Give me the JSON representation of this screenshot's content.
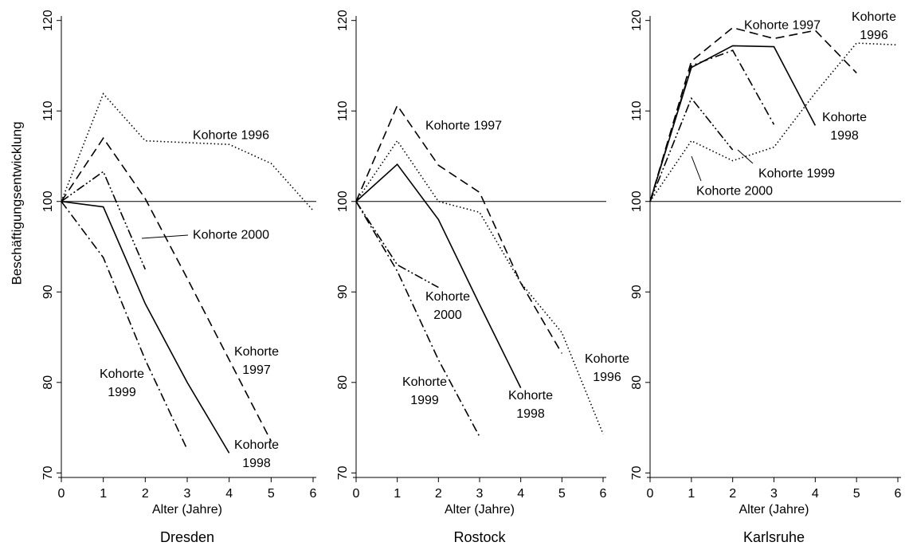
{
  "chart_data": [
    {
      "type": "line",
      "title": "Dresden",
      "xlabel": "Alter (Jahre)",
      "ylabel": "Beschäftigungsentwicklung",
      "x": [
        0,
        1,
        2,
        3,
        4,
        5,
        6
      ],
      "xlim": [
        0,
        6
      ],
      "xticks": [
        0,
        1,
        2,
        3,
        4,
        5,
        6
      ],
      "ylim": [
        69.5,
        120.5
      ],
      "yticks": [
        70,
        80,
        90,
        100,
        110,
        120
      ],
      "reference_line": 100,
      "series": [
        {
          "name": "Kohorte 1996",
          "color": "#000000",
          "line_style": "dotted",
          "values": [
            100,
            111.9,
            106.7,
            106.5,
            106.3,
            104.2,
            99
          ]
        },
        {
          "name": "Kohorte 1997",
          "color": "#000000",
          "line_style": "dashed",
          "values": [
            100,
            107,
            100.3,
            91.5,
            82.5,
            73.5,
            null
          ]
        },
        {
          "name": "Kohorte 1998",
          "color": "#000000",
          "line_style": "solid",
          "values": [
            100,
            99.4,
            88.7,
            80,
            72.2,
            null,
            null
          ]
        },
        {
          "name": "Kohorte 1999",
          "color": "#000000",
          "line_style": "dash-dot",
          "values": [
            100,
            93.8,
            82.5,
            72.6,
            null,
            null,
            null
          ]
        },
        {
          "name": "Kohorte 2000",
          "color": "#000000",
          "line_style": "dash-dot-dot",
          "values": [
            100,
            103.3,
            92.5,
            null,
            null,
            null,
            null
          ]
        }
      ]
    },
    {
      "type": "line",
      "title": "Rostock",
      "xlabel": "Alter (Jahre)",
      "x": [
        0,
        1,
        2,
        3,
        4,
        5,
        6
      ],
      "xlim": [
        0,
        6
      ],
      "xticks": [
        0,
        1,
        2,
        3,
        4,
        5,
        6
      ],
      "ylim": [
        69.5,
        120.5
      ],
      "yticks": [
        70,
        80,
        90,
        100,
        110,
        120
      ],
      "reference_line": 100,
      "series": [
        {
          "name": "Kohorte 1996",
          "color": "#000000",
          "line_style": "dotted",
          "values": [
            100,
            106.7,
            100,
            98.8,
            91,
            85.5,
            74.3
          ]
        },
        {
          "name": "Kohorte 1997",
          "color": "#000000",
          "line_style": "dashed",
          "values": [
            100,
            110.6,
            104,
            101,
            91,
            83.2,
            null
          ]
        },
        {
          "name": "Kohorte 1998",
          "color": "#000000",
          "line_style": "solid",
          "values": [
            100,
            104.1,
            98,
            88.6,
            79.4,
            null,
            null
          ]
        },
        {
          "name": "Kohorte 1999",
          "color": "#000000",
          "line_style": "dash-dot",
          "values": [
            100,
            92.3,
            82.5,
            74,
            null,
            null,
            null
          ]
        },
        {
          "name": "Kohorte 2000",
          "color": "#000000",
          "line_style": "dash-dot-dot",
          "values": [
            100,
            93,
            90.5,
            null,
            null,
            null,
            null
          ]
        }
      ]
    },
    {
      "type": "line",
      "title": "Karlsruhe",
      "xlabel": "Alter (Jahre)",
      "x": [
        0,
        1,
        2,
        3,
        4,
        5,
        6
      ],
      "xlim": [
        0,
        6
      ],
      "xticks": [
        0,
        1,
        2,
        3,
        4,
        5,
        6
      ],
      "ylim": [
        69.5,
        120.5
      ],
      "yticks": [
        70,
        80,
        90,
        100,
        110,
        120
      ],
      "reference_line": 100,
      "series": [
        {
          "name": "Kohorte 1996",
          "color": "#000000",
          "line_style": "dotted",
          "values": [
            100,
            106.7,
            104.5,
            106,
            112,
            117.5,
            117.3
          ]
        },
        {
          "name": "Kohorte 1997",
          "color": "#000000",
          "line_style": "dashed",
          "values": [
            100,
            115.5,
            119.2,
            118,
            118.9,
            114.2,
            null
          ]
        },
        {
          "name": "Kohorte 1998",
          "color": "#000000",
          "line_style": "solid",
          "values": [
            100,
            114.8,
            117.2,
            117.1,
            108.4,
            null,
            null
          ]
        },
        {
          "name": "Kohorte 1999",
          "color": "#000000",
          "line_style": "dash-dot",
          "values": [
            100,
            115,
            116.7,
            108.5,
            null,
            null,
            null
          ]
        },
        {
          "name": "Kohorte 2000",
          "color": "#000000",
          "line_style": "dash-dot-dot",
          "values": [
            100,
            111.4,
            105.7,
            null,
            null,
            null,
            null
          ]
        }
      ]
    }
  ]
}
